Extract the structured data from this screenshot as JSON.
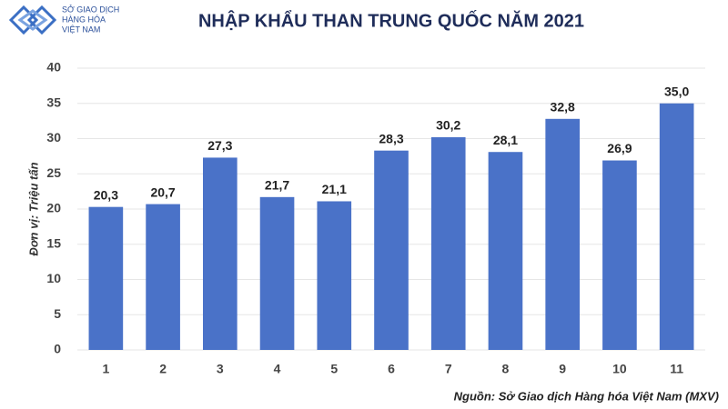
{
  "logo": {
    "lines": [
      "SỞ GIAO DỊCH",
      "HÀNG HÓA",
      "VIỆT NAM"
    ]
  },
  "chart_data": {
    "type": "bar",
    "title": "NHẬP KHẨU THAN TRUNG QUỐC NĂM 2021",
    "y_label": "Đơn vị: Triệu tấn",
    "source": "Nguồn: Sở Giao dịch Hàng hóa Việt Nam (MXV)",
    "categories": [
      "1",
      "2",
      "3",
      "4",
      "5",
      "6",
      "7",
      "8",
      "9",
      "10",
      "11"
    ],
    "values": [
      20.3,
      20.7,
      27.3,
      21.7,
      21.1,
      28.3,
      30.2,
      28.1,
      32.8,
      26.9,
      35.0
    ],
    "value_labels": [
      "20,3",
      "20,7",
      "27,3",
      "21,7",
      "21,1",
      "28,3",
      "30,2",
      "28,1",
      "32,8",
      "26,9",
      "35,0"
    ],
    "color": "#4a72c8",
    "ylim": [
      0,
      40
    ],
    "yticks": [
      0,
      5,
      10,
      15,
      20,
      25,
      30,
      35,
      40
    ],
    "grid": true
  }
}
